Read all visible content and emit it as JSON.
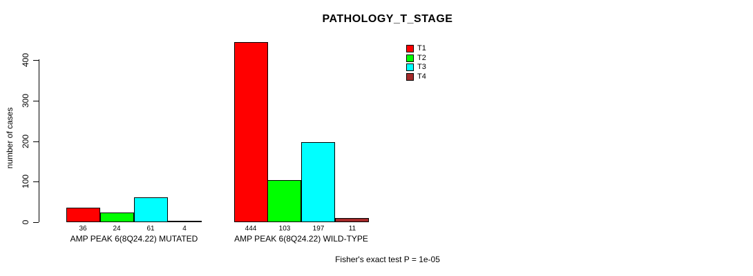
{
  "chart_data": {
    "type": "bar",
    "title": "PATHOLOGY_T_STAGE",
    "ylabel": "number of cases",
    "xlabel": "",
    "ylim": [
      0,
      450
    ],
    "y_ticks": [
      0,
      100,
      200,
      300,
      400
    ],
    "grid": false,
    "legend_position": "top-right",
    "categories": [
      "AMP PEAK 6(8Q24.22) MUTATED",
      "AMP PEAK 6(8Q24.22) WILD-TYPE"
    ],
    "series": [
      {
        "name": "T1",
        "color": "#ff0000",
        "values": [
          36,
          444
        ]
      },
      {
        "name": "T2",
        "color": "#00ff00",
        "values": [
          24,
          103
        ]
      },
      {
        "name": "T3",
        "color": "#00ffff",
        "values": [
          61,
          197
        ]
      },
      {
        "name": "T4",
        "color": "#a52a2a",
        "values": [
          4,
          11
        ]
      }
    ],
    "annotation": "Fisher's exact test P = 1e-05"
  }
}
